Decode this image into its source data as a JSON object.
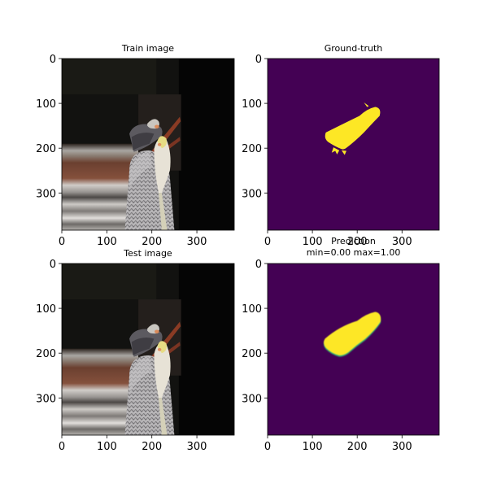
{
  "chart_data": [
    {
      "type": "image",
      "title": "Train image",
      "content": "photo of two cockatiels perched on a patterned cushion",
      "xticks": [
        0,
        100,
        200,
        300
      ],
      "yticks": [
        0,
        100,
        200,
        300
      ],
      "xlim": [
        0,
        383
      ],
      "ylim": [
        383,
        0
      ]
    },
    {
      "type": "heatmap",
      "title": "Ground-truth",
      "colormap": "viridis",
      "colors": {
        "background": "#440154",
        "foreground": "#fde725"
      },
      "xticks": [
        0,
        100,
        200,
        300
      ],
      "yticks": [
        0,
        100,
        200,
        300
      ],
      "xlim": [
        0,
        383
      ],
      "ylim": [
        383,
        0
      ]
    },
    {
      "type": "image",
      "title": "Test image",
      "content": "photo of two cockatiels perched on a patterned cushion",
      "xticks": [
        0,
        100,
        200,
        300
      ],
      "yticks": [
        0,
        100,
        200,
        300
      ],
      "xlim": [
        0,
        383
      ],
      "ylim": [
        383,
        0
      ]
    },
    {
      "type": "heatmap",
      "title": "Prediction",
      "subtitle": "min=0.00 max=1.00",
      "colormap": "viridis",
      "colors": {
        "background": "#440154",
        "foreground": "#fde725",
        "edge": "#35b779"
      },
      "xticks": [
        0,
        100,
        200,
        300
      ],
      "yticks": [
        0,
        100,
        200,
        300
      ],
      "xlim": [
        0,
        383
      ],
      "ylim": [
        383,
        0
      ]
    }
  ]
}
